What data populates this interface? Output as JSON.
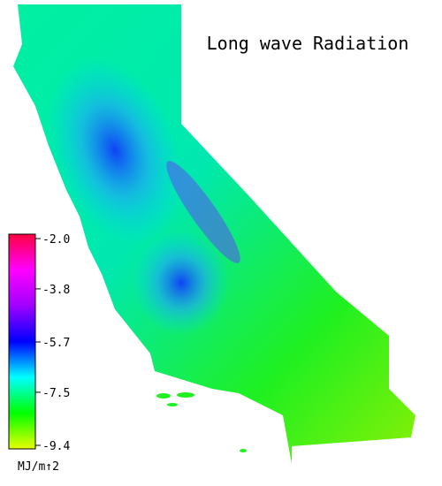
{
  "title": "Long wave Radiation",
  "colorbar": {
    "lim": [
      -9.4,
      -2.0
    ],
    "ticks": [
      {
        "value": -2,
        "label": "-2.0"
      },
      -3.8,
      -5.7,
      -7.5,
      -9.4
    ],
    "label": "MJ/m↑2",
    "colors": [
      "#e8ff00",
      "#00ff00",
      "#00ffff",
      "#0000ff",
      "#a000ff",
      "#ff00ff",
      "#ff0040"
    ]
  }
}
